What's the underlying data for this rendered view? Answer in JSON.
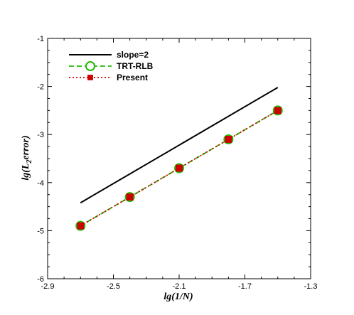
{
  "chart_data": {
    "type": "line",
    "xlabel": "lg(1/N)",
    "ylabel_parts": {
      "main": "lg(L",
      "sub": "2",
      "rest": "error)"
    },
    "xlim": [
      -2.9,
      -1.3
    ],
    "ylim": [
      -6,
      -1
    ],
    "xticks": [
      -2.9,
      -2.5,
      -2.1,
      -1.7,
      -1.3
    ],
    "yticks": [
      -6,
      -5,
      -4,
      -3,
      -2,
      -1
    ],
    "xtick_labels": [
      "-2.9",
      "-2.5",
      "-2.1",
      "-1.7",
      "-1.3"
    ],
    "ytick_labels": [
      "-6",
      "-5",
      "-4",
      "-3",
      "-2",
      "-1"
    ],
    "grid": false,
    "legend_position": "top-left",
    "series": [
      {
        "name": "slope=2",
        "style": "solid",
        "color": "#000000",
        "marker": "none",
        "x": [
          -2.7,
          -1.5
        ],
        "y": [
          -4.42,
          -2.02
        ]
      },
      {
        "name": "TRT-RLB",
        "style": "dashed",
        "color": "#22bb00",
        "marker": "open-circle",
        "x": [
          -2.7,
          -2.4,
          -2.1,
          -1.8,
          -1.5
        ],
        "y": [
          -4.9,
          -4.3,
          -3.7,
          -3.1,
          -2.5
        ]
      },
      {
        "name": "Present",
        "style": "dotted",
        "color": "#cc0000",
        "marker": "filled-square",
        "x": [
          -2.7,
          -2.4,
          -2.1,
          -1.8,
          -1.5
        ],
        "y": [
          -4.9,
          -4.3,
          -3.7,
          -3.1,
          -2.5
        ]
      }
    ]
  }
}
